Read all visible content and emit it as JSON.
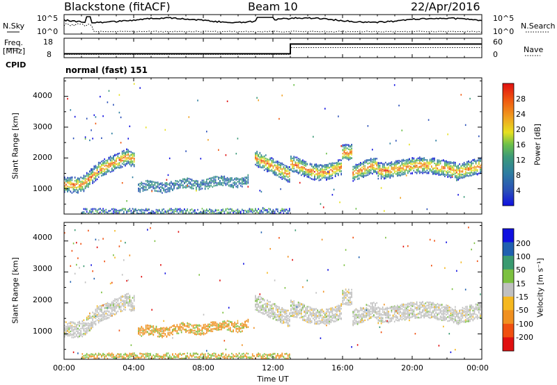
{
  "header": {
    "station": "Blackstone (fitACF)",
    "beam": "Beam 10",
    "date": "22/Apr/2016"
  },
  "scan_info": "normal (fast) 151",
  "labels": {
    "nsky": "N.Sky",
    "nsearch": "N.Search",
    "freq": "Freq.",
    "mhz": "[MHz]",
    "nave": "Nave",
    "cpid": "CPID"
  },
  "chart_data": [
    {
      "type": "line",
      "name": "noise-panel",
      "series": [
        {
          "name": "N.Sky"
        },
        {
          "name": "N.Search"
        }
      ],
      "left_ticks": [
        "10^5",
        "10^0"
      ],
      "right_ticks": [
        "10^5",
        "10^0"
      ]
    },
    {
      "type": "line",
      "name": "freq-nave-panel",
      "series": [
        {
          "name": "Freq.",
          "x": [
            0,
            13,
            13,
            24
          ],
          "values": [
            10,
            10,
            15,
            15
          ]
        },
        {
          "name": "Nave",
          "x": [
            0,
            13,
            13,
            24
          ],
          "values": [
            10,
            10,
            31,
            31
          ]
        }
      ],
      "left_ticks": [
        "18",
        "8"
      ],
      "right_ticks": [
        "60",
        "0"
      ],
      "left_ylim": [
        8,
        18
      ],
      "right_ylim": [
        0,
        60
      ]
    },
    {
      "type": "heatmap",
      "name": "power-panel",
      "ylabel": "Slant Range [km]",
      "yticks": [
        "1000",
        "2000",
        "3000",
        "4000"
      ],
      "ylim": [
        180,
        4600
      ],
      "xlim": [
        0,
        24
      ],
      "colorbar_label": "Power [dB]",
      "colorbar_ticks": [
        "4",
        "8",
        "12",
        "16",
        "20",
        "24",
        "28"
      ],
      "colorbar_range": [
        0,
        32
      ]
    },
    {
      "type": "heatmap",
      "name": "velocity-panel",
      "ylabel": "Slant Range [km]",
      "yticks": [
        "1000",
        "2000",
        "3000",
        "4000"
      ],
      "ylim": [
        180,
        4600
      ],
      "xlim": [
        0,
        24
      ],
      "colorbar_label": "Velocity [m s⁻¹]",
      "colorbar_ticks": [
        "200",
        "100",
        "50",
        "15",
        "-15",
        "-50",
        "-100",
        "-200"
      ]
    }
  ],
  "time_axis": {
    "xlabel": "Time UT",
    "ticks": [
      "00:00",
      "04:00",
      "08:00",
      "12:00",
      "16:00",
      "20:00",
      "00:00"
    ]
  },
  "colors": {
    "power": [
      "#1010e0",
      "#2a4fb8",
      "#2e7ea0",
      "#3c9a78",
      "#6cc04a",
      "#e6e020",
      "#f0a020",
      "#f05a10",
      "#e01010"
    ],
    "velocity": [
      "#e01010",
      "#f05010",
      "#f09020",
      "#f5b820",
      "#c0c0c0",
      "#7cc040",
      "#3a9a70",
      "#2060b0",
      "#1010e0"
    ]
  }
}
